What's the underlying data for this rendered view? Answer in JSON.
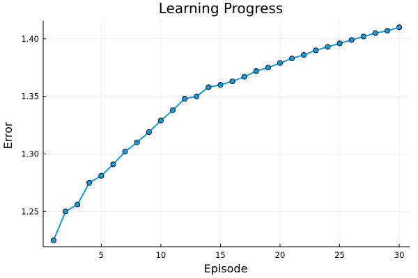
{
  "chart_data": {
    "type": "line",
    "title": "Learning Progress",
    "xlabel": "Episode",
    "ylabel": "Error",
    "xlim": [
      0.13,
      30.87
    ],
    "ylim": [
      1.2194,
      1.4156
    ],
    "xticks": [
      5,
      10,
      15,
      20,
      25,
      30
    ],
    "yticks": [
      1.25,
      1.3,
      1.35,
      1.4
    ],
    "ytick_labels": [
      "1.25",
      "1.30",
      "1.35",
      "1.40"
    ],
    "grid": true,
    "legend": "none",
    "series": [
      {
        "color": "#0f9ae0",
        "marker": "circle",
        "x": [
          1,
          2,
          3,
          4,
          5,
          6,
          7,
          8,
          9,
          10,
          11,
          12,
          13,
          14,
          15,
          16,
          17,
          18,
          19,
          20,
          21,
          22,
          23,
          24,
          25,
          26,
          27,
          28,
          29,
          30
        ],
        "y": [
          1.225,
          1.25,
          1.256,
          1.275,
          1.281,
          1.291,
          1.302,
          1.31,
          1.319,
          1.329,
          1.338,
          1.348,
          1.35,
          1.358,
          1.36,
          1.363,
          1.367,
          1.372,
          1.375,
          1.379,
          1.383,
          1.386,
          1.39,
          1.393,
          1.396,
          1.399,
          1.402,
          1.405,
          1.407,
          1.41
        ]
      }
    ]
  }
}
